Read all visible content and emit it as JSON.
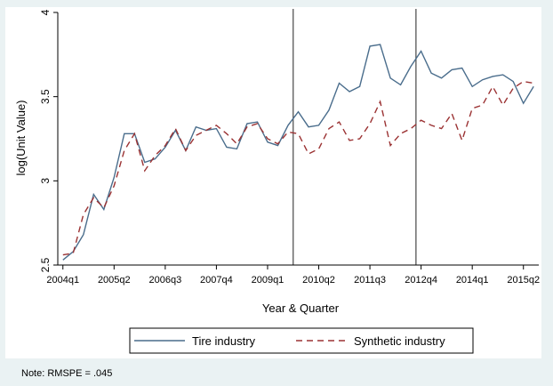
{
  "chart_data": {
    "type": "line",
    "xlabel": "Year & Quarter",
    "ylabel": "log(Unit Value)",
    "ylim": [
      2.5,
      4
    ],
    "yticks": [
      2.5,
      3,
      3.5,
      4
    ],
    "ytick_labels": [
      "2.5",
      "3",
      "3.5",
      "4"
    ],
    "x_quarters": [
      "2004q1",
      "2004q2",
      "2004q3",
      "2004q4",
      "2005q1",
      "2005q2",
      "2005q3",
      "2005q4",
      "2006q1",
      "2006q2",
      "2006q3",
      "2006q4",
      "2007q1",
      "2007q2",
      "2007q3",
      "2007q4",
      "2008q1",
      "2008q2",
      "2008q3",
      "2008q4",
      "2009q1",
      "2009q2",
      "2009q3",
      "2009q4",
      "2010q1",
      "2010q2",
      "2010q3",
      "2010q4",
      "2011q1",
      "2011q2",
      "2011q3",
      "2011q4",
      "2012q1",
      "2012q2",
      "2012q3",
      "2012q4",
      "2013q1",
      "2013q2",
      "2013q3",
      "2013q4",
      "2014q1",
      "2014q2",
      "2014q3",
      "2014q4",
      "2015q1",
      "2015q2",
      "2015q3"
    ],
    "xtick_labels": [
      "2004q1",
      "2005q2",
      "2006q3",
      "2007q4",
      "2009q1",
      "2010q2",
      "2011q3",
      "2012q4",
      "2014q1",
      "2015q2"
    ],
    "vertical_lines": [
      "2009q3",
      "2012q3"
    ],
    "grid": false,
    "legend_position": "bottom",
    "series": [
      {
        "name": "Tire industry",
        "color": "#4a6d8c",
        "dash": "solid",
        "values": [
          2.53,
          2.58,
          2.68,
          2.92,
          2.83,
          3.02,
          3.28,
          3.28,
          3.11,
          3.13,
          3.2,
          3.3,
          3.18,
          3.32,
          3.3,
          3.31,
          3.2,
          3.19,
          3.34,
          3.35,
          3.23,
          3.21,
          3.33,
          3.41,
          3.32,
          3.33,
          3.42,
          3.58,
          3.53,
          3.56,
          3.8,
          3.81,
          3.61,
          3.57,
          3.68,
          3.77,
          3.64,
          3.61,
          3.66,
          3.67,
          3.56,
          3.6,
          3.62,
          3.63,
          3.59,
          3.46,
          3.56
        ]
      },
      {
        "name": "Synthetic industry",
        "color": "#9b3233",
        "dash": "dashed",
        "values": [
          2.56,
          2.57,
          2.8,
          2.9,
          2.84,
          2.97,
          3.18,
          3.28,
          3.06,
          3.15,
          3.21,
          3.31,
          3.18,
          3.27,
          3.3,
          3.33,
          3.28,
          3.22,
          3.32,
          3.34,
          3.25,
          3.22,
          3.29,
          3.28,
          3.16,
          3.19,
          3.31,
          3.35,
          3.24,
          3.25,
          3.34,
          3.47,
          3.21,
          3.28,
          3.31,
          3.36,
          3.33,
          3.31,
          3.4,
          3.24,
          3.43,
          3.45,
          3.56,
          3.45,
          3.55,
          3.59,
          3.58
        ]
      }
    ],
    "note": "Note: RMSPE = .045"
  }
}
